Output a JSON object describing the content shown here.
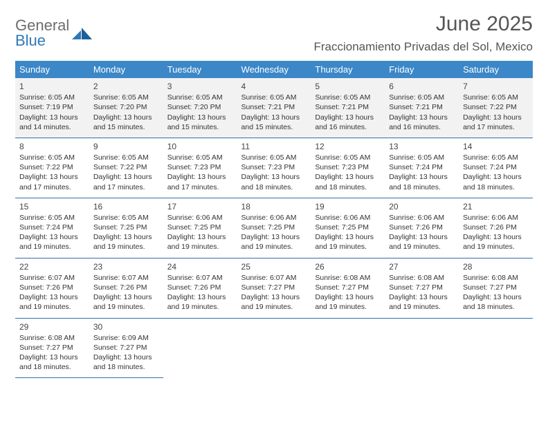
{
  "brand": {
    "part1": "General",
    "part2": "Blue"
  },
  "title": "June 2025",
  "location": "Fraccionamiento Privadas del Sol, Mexico",
  "header_bg": "#3b87c8",
  "row_border": "#2f6fa6",
  "shade_bg": "#f2f2f2",
  "weekdays": [
    "Sunday",
    "Monday",
    "Tuesday",
    "Wednesday",
    "Thursday",
    "Friday",
    "Saturday"
  ],
  "columns": 7,
  "rows": 5,
  "font_family": "Arial",
  "cells": [
    {
      "n": "1",
      "sr": "Sunrise: 6:05 AM",
      "ss": "Sunset: 7:19 PM",
      "d1": "Daylight: 13 hours",
      "d2": "and 14 minutes."
    },
    {
      "n": "2",
      "sr": "Sunrise: 6:05 AM",
      "ss": "Sunset: 7:20 PM",
      "d1": "Daylight: 13 hours",
      "d2": "and 15 minutes."
    },
    {
      "n": "3",
      "sr": "Sunrise: 6:05 AM",
      "ss": "Sunset: 7:20 PM",
      "d1": "Daylight: 13 hours",
      "d2": "and 15 minutes."
    },
    {
      "n": "4",
      "sr": "Sunrise: 6:05 AM",
      "ss": "Sunset: 7:21 PM",
      "d1": "Daylight: 13 hours",
      "d2": "and 15 minutes."
    },
    {
      "n": "5",
      "sr": "Sunrise: 6:05 AM",
      "ss": "Sunset: 7:21 PM",
      "d1": "Daylight: 13 hours",
      "d2": "and 16 minutes."
    },
    {
      "n": "6",
      "sr": "Sunrise: 6:05 AM",
      "ss": "Sunset: 7:21 PM",
      "d1": "Daylight: 13 hours",
      "d2": "and 16 minutes."
    },
    {
      "n": "7",
      "sr": "Sunrise: 6:05 AM",
      "ss": "Sunset: 7:22 PM",
      "d1": "Daylight: 13 hours",
      "d2": "and 17 minutes."
    },
    {
      "n": "8",
      "sr": "Sunrise: 6:05 AM",
      "ss": "Sunset: 7:22 PM",
      "d1": "Daylight: 13 hours",
      "d2": "and 17 minutes."
    },
    {
      "n": "9",
      "sr": "Sunrise: 6:05 AM",
      "ss": "Sunset: 7:22 PM",
      "d1": "Daylight: 13 hours",
      "d2": "and 17 minutes."
    },
    {
      "n": "10",
      "sr": "Sunrise: 6:05 AM",
      "ss": "Sunset: 7:23 PM",
      "d1": "Daylight: 13 hours",
      "d2": "and 17 minutes."
    },
    {
      "n": "11",
      "sr": "Sunrise: 6:05 AM",
      "ss": "Sunset: 7:23 PM",
      "d1": "Daylight: 13 hours",
      "d2": "and 18 minutes."
    },
    {
      "n": "12",
      "sr": "Sunrise: 6:05 AM",
      "ss": "Sunset: 7:23 PM",
      "d1": "Daylight: 13 hours",
      "d2": "and 18 minutes."
    },
    {
      "n": "13",
      "sr": "Sunrise: 6:05 AM",
      "ss": "Sunset: 7:24 PM",
      "d1": "Daylight: 13 hours",
      "d2": "and 18 minutes."
    },
    {
      "n": "14",
      "sr": "Sunrise: 6:05 AM",
      "ss": "Sunset: 7:24 PM",
      "d1": "Daylight: 13 hours",
      "d2": "and 18 minutes."
    },
    {
      "n": "15",
      "sr": "Sunrise: 6:05 AM",
      "ss": "Sunset: 7:24 PM",
      "d1": "Daylight: 13 hours",
      "d2": "and 19 minutes."
    },
    {
      "n": "16",
      "sr": "Sunrise: 6:05 AM",
      "ss": "Sunset: 7:25 PM",
      "d1": "Daylight: 13 hours",
      "d2": "and 19 minutes."
    },
    {
      "n": "17",
      "sr": "Sunrise: 6:06 AM",
      "ss": "Sunset: 7:25 PM",
      "d1": "Daylight: 13 hours",
      "d2": "and 19 minutes."
    },
    {
      "n": "18",
      "sr": "Sunrise: 6:06 AM",
      "ss": "Sunset: 7:25 PM",
      "d1": "Daylight: 13 hours",
      "d2": "and 19 minutes."
    },
    {
      "n": "19",
      "sr": "Sunrise: 6:06 AM",
      "ss": "Sunset: 7:25 PM",
      "d1": "Daylight: 13 hours",
      "d2": "and 19 minutes."
    },
    {
      "n": "20",
      "sr": "Sunrise: 6:06 AM",
      "ss": "Sunset: 7:26 PM",
      "d1": "Daylight: 13 hours",
      "d2": "and 19 minutes."
    },
    {
      "n": "21",
      "sr": "Sunrise: 6:06 AM",
      "ss": "Sunset: 7:26 PM",
      "d1": "Daylight: 13 hours",
      "d2": "and 19 minutes."
    },
    {
      "n": "22",
      "sr": "Sunrise: 6:07 AM",
      "ss": "Sunset: 7:26 PM",
      "d1": "Daylight: 13 hours",
      "d2": "and 19 minutes."
    },
    {
      "n": "23",
      "sr": "Sunrise: 6:07 AM",
      "ss": "Sunset: 7:26 PM",
      "d1": "Daylight: 13 hours",
      "d2": "and 19 minutes."
    },
    {
      "n": "24",
      "sr": "Sunrise: 6:07 AM",
      "ss": "Sunset: 7:26 PM",
      "d1": "Daylight: 13 hours",
      "d2": "and 19 minutes."
    },
    {
      "n": "25",
      "sr": "Sunrise: 6:07 AM",
      "ss": "Sunset: 7:27 PM",
      "d1": "Daylight: 13 hours",
      "d2": "and 19 minutes."
    },
    {
      "n": "26",
      "sr": "Sunrise: 6:08 AM",
      "ss": "Sunset: 7:27 PM",
      "d1": "Daylight: 13 hours",
      "d2": "and 19 minutes."
    },
    {
      "n": "27",
      "sr": "Sunrise: 6:08 AM",
      "ss": "Sunset: 7:27 PM",
      "d1": "Daylight: 13 hours",
      "d2": "and 19 minutes."
    },
    {
      "n": "28",
      "sr": "Sunrise: 6:08 AM",
      "ss": "Sunset: 7:27 PM",
      "d1": "Daylight: 13 hours",
      "d2": "and 18 minutes."
    },
    {
      "n": "29",
      "sr": "Sunrise: 6:08 AM",
      "ss": "Sunset: 7:27 PM",
      "d1": "Daylight: 13 hours",
      "d2": "and 18 minutes."
    },
    {
      "n": "30",
      "sr": "Sunrise: 6:09 AM",
      "ss": "Sunset: 7:27 PM",
      "d1": "Daylight: 13 hours",
      "d2": "and 18 minutes."
    },
    null,
    null,
    null,
    null,
    null
  ]
}
